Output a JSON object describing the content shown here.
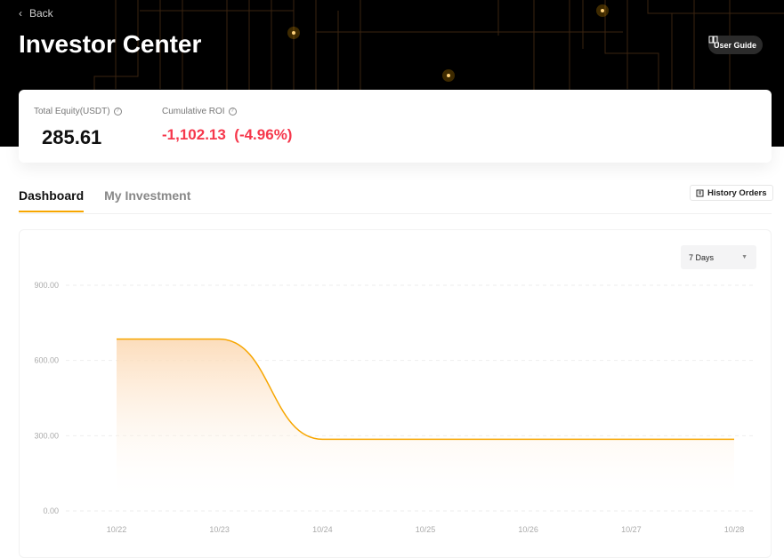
{
  "header": {
    "back_label": "Back",
    "title": "Investor Center",
    "user_guide_label": "User Guide"
  },
  "summary": {
    "equity_label": "Total Equity(USDT)",
    "equity_value": "285.61",
    "roi_label": "Cumulative ROI",
    "roi_value": "-1,102.13  (-4.96%)",
    "roi_color": "#f6384c"
  },
  "tabs": [
    {
      "label": "Dashboard",
      "active": true
    },
    {
      "label": "My Investment",
      "active": false
    }
  ],
  "history_orders_label": "History Orders",
  "range_select": {
    "value": "7 Days"
  },
  "accent_color": "#f7a600",
  "chart_data": {
    "type": "area",
    "x": [
      "10/22",
      "10/23",
      "10/24",
      "10/25",
      "10/26",
      "10/27",
      "10/28"
    ],
    "values": [
      685,
      685,
      285.61,
      285.61,
      285.61,
      285.61,
      285.61
    ],
    "yticks": [
      "0.00",
      "300.00",
      "600.00",
      "900.00"
    ],
    "ylim": [
      0,
      900
    ],
    "grid": true,
    "line_color": "#f7a600"
  }
}
